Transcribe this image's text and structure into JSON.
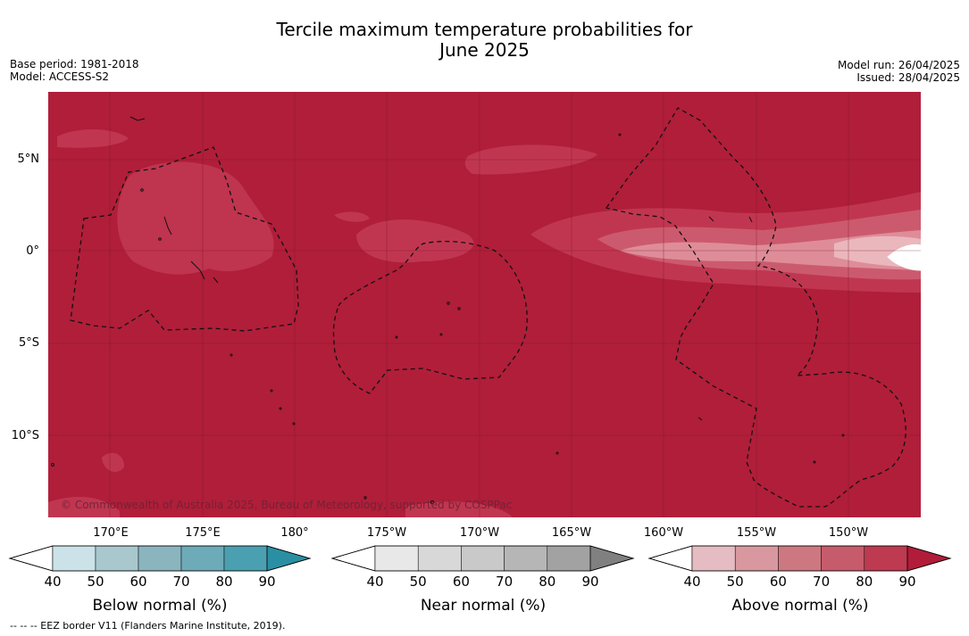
{
  "title": {
    "line1": "Tercile maximum temperature probabilities for",
    "line2": "June 2025"
  },
  "meta_left": {
    "base_period": "Base period: 1981-2018",
    "model": "Model: ACCESS-S2"
  },
  "meta_right": {
    "model_run": "Model run: 26/04/2025",
    "issued": "Issued: 28/04/2025"
  },
  "map": {
    "copyright": "© Commonwealth of Australia 2025, Bureau of Meteorology, supported by COSPPac",
    "lat_labels": [
      "5°N",
      "0°",
      "5°S",
      "10°S"
    ],
    "lon_labels": [
      "170°E",
      "175°E",
      "180°",
      "175°W",
      "170°W",
      "165°W",
      "160°W",
      "155°W",
      "150°W"
    ],
    "colors": {
      "ocean_base": "#b01e3a",
      "band_70": "#c03650",
      "band_80": "#cc5a6e",
      "band_90": "#de8d98",
      "band_top": "#eab7bd",
      "below_40": "#ffffff"
    }
  },
  "colorbars": [
    {
      "name": "below",
      "title": "Below normal (%)",
      "ticks": [
        "40",
        "50",
        "60",
        "70",
        "80",
        "90"
      ],
      "colors": [
        "#ffffff",
        "#cbe3e8",
        "#a8c8ce",
        "#8ab5bf",
        "#6dabb8",
        "#4aa0b1",
        "#2b8fa3"
      ]
    },
    {
      "name": "near",
      "title": "Near normal (%)",
      "ticks": [
        "40",
        "50",
        "60",
        "70",
        "80",
        "90"
      ],
      "colors": [
        "#ffffff",
        "#e8e8e8",
        "#d8d8d8",
        "#c9c9c9",
        "#b6b6b6",
        "#a2a2a2",
        "#808080"
      ]
    },
    {
      "name": "above",
      "title": "Above normal (%)",
      "ticks": [
        "40",
        "50",
        "60",
        "70",
        "80",
        "90"
      ],
      "colors": [
        "#ffffff",
        "#e5bcc1",
        "#d9989f",
        "#cd7880",
        "#c65c6b",
        "#bd3a50",
        "#b11c3a"
      ]
    }
  ],
  "footnote": "--  --  -- EEZ border V11 (Flanders Marine Institute, 2019)."
}
